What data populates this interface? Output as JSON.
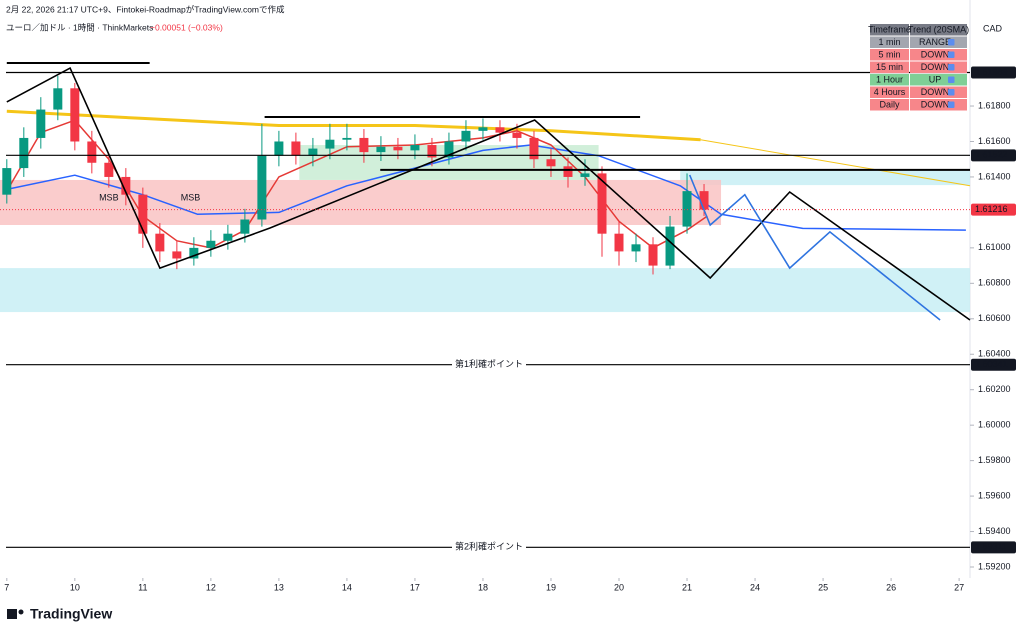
{
  "header": {
    "caption": "2月 22, 2026 21:17 UTC+9、Fintokei-RoadmapがTradingView.comで作成",
    "symbol": "ユーロ／加ドル · 1時間 · ThinkMarkets",
    "change": "−0.00051 (−0.03%)"
  },
  "currency": "CAD",
  "logo": "TradingView",
  "trend_table": {
    "columns": [
      "Timeframe",
      "Trend (20SMA)"
    ],
    "rows": [
      {
        "timeframe": "1 min",
        "trend": "RANGE",
        "color": "#a3a6af"
      },
      {
        "timeframe": "5 min",
        "trend": "DOWN",
        "color": "#f7868a"
      },
      {
        "timeframe": "15 min",
        "trend": "DOWN",
        "color": "#f7868a"
      },
      {
        "timeframe": "1 Hour",
        "trend": "UP",
        "color": "#7fcf96"
      },
      {
        "timeframe": "4 Hours",
        "trend": "DOWN",
        "color": "#f7868a"
      },
      {
        "timeframe": "Daily",
        "trend": "DOWN",
        "color": "#f7868a"
      }
    ]
  },
  "chart_data": {
    "type": "candlestick",
    "xlim": [
      -0.1,
      14.16
    ],
    "xticks": [
      {
        "value": 0,
        "label": "7"
      },
      {
        "value": 1,
        "label": "10"
      },
      {
        "value": 2,
        "label": "11"
      },
      {
        "value": 3,
        "label": "12"
      },
      {
        "value": 4,
        "label": "13"
      },
      {
        "value": 5,
        "label": "14"
      },
      {
        "value": 6,
        "label": "17"
      },
      {
        "value": 7,
        "label": "18"
      },
      {
        "value": 8,
        "label": "19"
      },
      {
        "value": 9,
        "label": "20"
      },
      {
        "value": 10,
        "label": "21"
      },
      {
        "value": 11,
        "label": "24"
      },
      {
        "value": 12,
        "label": "25"
      },
      {
        "value": 13,
        "label": "26"
      },
      {
        "value": 14,
        "label": "27"
      }
    ],
    "ylim": [
      1.59138,
      1.62398
    ],
    "yticks": [
      {
        "value": 1.618,
        "label": "1.61800"
      },
      {
        "value": 1.616,
        "label": "1.61600"
      },
      {
        "value": 1.614,
        "label": "1.61400"
      },
      {
        "value": 1.61,
        "label": "1.61000"
      },
      {
        "value": 1.608,
        "label": "1.60800"
      },
      {
        "value": 1.606,
        "label": "1.60600"
      },
      {
        "value": 1.604,
        "label": "1.60400"
      },
      {
        "value": 1.602,
        "label": "1.60200"
      },
      {
        "value": 1.6,
        "label": "1.60000"
      },
      {
        "value": 1.598,
        "label": "1.59800"
      },
      {
        "value": 1.596,
        "label": "1.59600"
      },
      {
        "value": 1.594,
        "label": "1.59400"
      },
      {
        "value": 1.592,
        "label": "1.59200"
      }
    ],
    "up_color": "#089981",
    "down_color": "#f23645",
    "x": [
      0,
      0.25,
      0.5,
      0.75,
      1,
      1.25,
      1.5,
      1.75,
      2,
      2.25,
      2.5,
      2.75,
      3,
      3.25,
      3.5,
      3.75,
      4,
      4.25,
      4.5,
      4.75,
      5,
      5.25,
      5.5,
      5.75,
      6,
      6.25,
      6.5,
      6.75,
      7,
      7.25,
      7.5,
      7.75,
      8,
      8.25,
      8.5,
      8.75,
      9,
      9.25,
      9.5,
      9.75,
      10,
      10.25
    ],
    "open": [
      1.613,
      1.6145,
      1.6162,
      1.6178,
      1.619,
      1.616,
      1.6148,
      1.614,
      1.613,
      1.6108,
      1.6098,
      1.6094,
      1.61,
      1.6104,
      1.6108,
      1.6116,
      1.6152,
      1.616,
      1.6152,
      1.6156,
      1.6161,
      1.6162,
      1.6154,
      1.6157,
      1.6155,
      1.6158,
      1.6151,
      1.616,
      1.6166,
      1.6168,
      1.6165,
      1.6162,
      1.615,
      1.6146,
      1.614,
      1.6142,
      1.6108,
      1.6098,
      1.6102,
      1.609,
      1.6112,
      1.6132
    ],
    "high": [
      1.615,
      1.6168,
      1.6185,
      1.6197,
      1.6193,
      1.6166,
      1.6153,
      1.6145,
      1.6134,
      1.6114,
      1.6104,
      1.6106,
      1.611,
      1.6113,
      1.6122,
      1.617,
      1.6166,
      1.6165,
      1.6162,
      1.617,
      1.617,
      1.6167,
      1.6163,
      1.6162,
      1.6164,
      1.6162,
      1.6165,
      1.6172,
      1.6173,
      1.6172,
      1.617,
      1.6166,
      1.6156,
      1.6151,
      1.615,
      1.6146,
      1.6115,
      1.6108,
      1.6106,
      1.6118,
      1.6142,
      1.6136
    ],
    "low": [
      1.6125,
      1.614,
      1.6156,
      1.6172,
      1.6155,
      1.6142,
      1.6134,
      1.6124,
      1.61,
      1.6092,
      1.6088,
      1.609,
      1.6095,
      1.6099,
      1.6103,
      1.6112,
      1.6146,
      1.6147,
      1.6146,
      1.615,
      1.6155,
      1.6148,
      1.6149,
      1.615,
      1.615,
      1.6146,
      1.6147,
      1.6155,
      1.6161,
      1.616,
      1.6156,
      1.6145,
      1.614,
      1.6134,
      1.6135,
      1.6095,
      1.609,
      1.6092,
      1.6085,
      1.6088,
      1.6108,
      1.6118
    ],
    "close": [
      1.6145,
      1.6162,
      1.6178,
      1.619,
      1.616,
      1.6148,
      1.614,
      1.613,
      1.6108,
      1.6098,
      1.6094,
      1.61,
      1.6104,
      1.6108,
      1.6116,
      1.6152,
      1.616,
      1.6152,
      1.6156,
      1.6161,
      1.6162,
      1.6154,
      1.6157,
      1.6155,
      1.6158,
      1.6151,
      1.616,
      1.6166,
      1.6168,
      1.6165,
      1.6162,
      1.615,
      1.6146,
      1.614,
      1.6142,
      1.6108,
      1.6098,
      1.6102,
      1.609,
      1.6112,
      1.6132,
      1.61216
    ],
    "last_price": 1.61216,
    "indicators": [
      {
        "color": "#f5c518",
        "width": 3,
        "x": [
          0,
          2,
          4,
          6,
          8,
          10.2
        ],
        "values": [
          1.6177,
          1.6173,
          1.6169,
          1.6169,
          1.6166,
          1.6161
        ]
      },
      {
        "color": "#f5c518",
        "width": 1,
        "x": [
          10.2,
          14.16
        ],
        "values": [
          1.6161,
          1.6135
        ]
      },
      {
        "color": "#2962ff",
        "width": 1.5,
        "x": [
          0,
          1,
          2,
          2.8,
          4,
          5,
          7,
          7.7,
          8.7,
          9.9,
          10.5,
          11.7,
          14.1
        ],
        "values": [
          1.6133,
          1.6141,
          1.613,
          1.6119,
          1.612,
          1.6135,
          1.6155,
          1.6158,
          1.6152,
          1.6135,
          1.6119,
          1.6111,
          1.611
        ]
      },
      {
        "color": "#e53935",
        "width": 1.5,
        "x": [
          0,
          0.5,
          1,
          1.5,
          2,
          2.5,
          3,
          3.5,
          4,
          5,
          6,
          7,
          7.5,
          8,
          8.5,
          9,
          9.5,
          10,
          10.3
        ],
        "values": [
          1.6132,
          1.6165,
          1.6172,
          1.615,
          1.6118,
          1.6104,
          1.61,
          1.611,
          1.614,
          1.6157,
          1.6158,
          1.6162,
          1.6166,
          1.6158,
          1.614,
          1.6115,
          1.61,
          1.611,
          1.6118
        ]
      }
    ],
    "zones": [
      {
        "x": [
          -0.1,
          14.16
        ],
        "y": [
          1.60638,
          1.60886
        ],
        "color": "#c8eef5"
      },
      {
        "x": [
          9.9,
          14.16
        ],
        "y": [
          1.61354,
          1.6144
        ],
        "color": "#c8eef5"
      },
      {
        "x": [
          -0.1,
          10.5
        ],
        "y": [
          1.61129,
          1.61383
        ],
        "color": "#f9c3c3"
      },
      {
        "x": [
          4.3,
          8.7
        ],
        "y": [
          1.61383,
          1.6158
        ],
        "color": "#c9ecd3"
      }
    ],
    "segments": [
      {
        "x": [
          0,
          2.1
        ],
        "value": 1.62043
      },
      {
        "x": [
          3.79,
          9.31
        ],
        "value": 1.61738
      },
      {
        "x": [
          5.49,
          14.16
        ],
        "value": 1.6144
      }
    ],
    "zigzags": [
      {
        "color": "#000000",
        "x": [
          0,
          0.93,
          2.25,
          3.87,
          7.76,
          10.34,
          11.51,
          14.16
        ],
        "values": [
          1.61823,
          1.62014,
          1.60886,
          1.61112,
          1.61721,
          1.6083,
          1.61315,
          1.60593
        ]
      },
      {
        "color": "#2f74e0",
        "x": [
          10.04,
          10.34,
          10.85,
          11.51,
          12.1,
          13.72
        ],
        "values": [
          1.61411,
          1.61129,
          1.613,
          1.60886,
          1.6109,
          1.60593
        ]
      }
    ],
    "annotations": [
      {
        "text": "MSB",
        "x": 1.5,
        "value": 1.6128
      },
      {
        "text": "MSB",
        "x": 2.7,
        "value": 1.6128
      }
    ],
    "levels": [
      {
        "value": 1.61989
      },
      {
        "value": 1.61522
      },
      {
        "value": 1.60341,
        "text": "第1利確ポイント"
      },
      {
        "value": 1.59311,
        "text": "第2利確ポイント"
      }
    ]
  }
}
